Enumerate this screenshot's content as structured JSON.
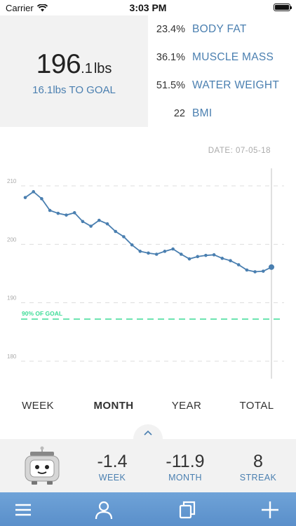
{
  "status_bar": {
    "carrier": "Carrier",
    "time": "3:03 PM"
  },
  "summary": {
    "weight_int": "196",
    "weight_dec": ".1",
    "weight_unit": "lbs",
    "to_goal": "16.1lbs TO GOAL"
  },
  "metrics": [
    {
      "value": "23.4%",
      "label": "BODY FAT"
    },
    {
      "value": "36.1%",
      "label": "MUSCLE MASS"
    },
    {
      "value": "51.5%",
      "label": "WATER WEIGHT"
    },
    {
      "value": "22",
      "label": "BMI"
    }
  ],
  "chart_date": "DATE:  07-05-18",
  "chart_data": {
    "type": "line",
    "title": "",
    "xlabel": "",
    "ylabel": "",
    "y_ticks": [
      180,
      190,
      200,
      210
    ],
    "ylim": [
      177,
      213
    ],
    "grid": true,
    "goal_line": {
      "label": "90% OF GOAL",
      "value": 187.2,
      "color": "#3ddc97"
    },
    "series": [
      {
        "color": "#4a7fb0",
        "values": [
          208.0,
          209.0,
          207.8,
          205.8,
          205.3,
          205.0,
          205.4,
          203.9,
          203.1,
          204.1,
          203.5,
          202.2,
          201.3,
          199.9,
          198.8,
          198.5,
          198.3,
          198.8,
          199.2,
          198.3,
          197.5,
          197.9,
          198.1,
          198.2,
          197.6,
          197.2,
          196.5,
          195.6,
          195.3,
          195.4,
          196.1
        ]
      }
    ]
  },
  "range_tabs": [
    {
      "label": "WEEK",
      "active": false
    },
    {
      "label": "MONTH",
      "active": true
    },
    {
      "label": "YEAR",
      "active": false
    },
    {
      "label": "TOTAL",
      "active": false
    }
  ],
  "stats": [
    {
      "value": "-1.4",
      "label": "WEEK"
    },
    {
      "value": "-11.9",
      "label": "MONTH"
    },
    {
      "value": "8",
      "label": "STREAK"
    }
  ],
  "tab_bar": {
    "icons": [
      "menu-icon",
      "profile-icon",
      "copy-icon",
      "add-icon"
    ]
  },
  "colors": {
    "accent": "#4a7fb0",
    "goal": "#3ddc97",
    "tab_bar": "#6fa3d8",
    "panel": "#f2f2f2"
  }
}
